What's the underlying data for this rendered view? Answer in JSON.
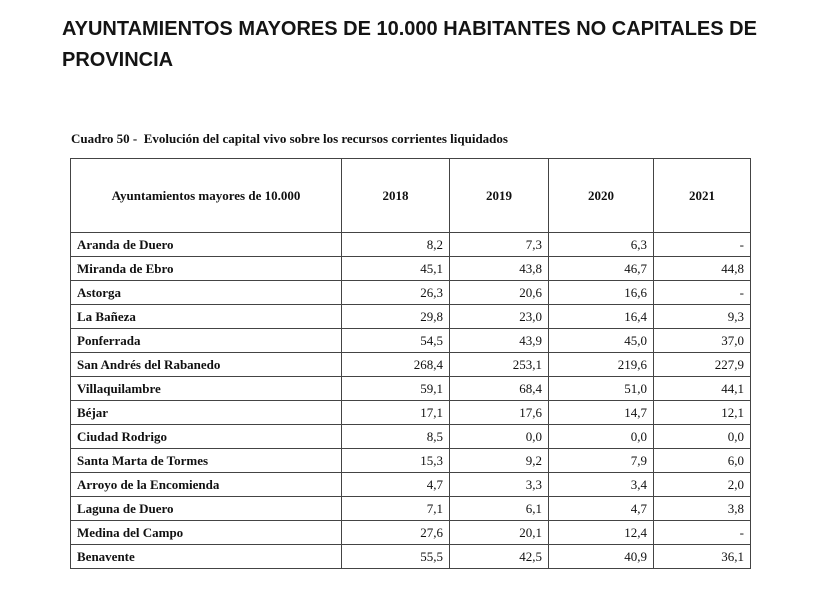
{
  "heading": {
    "line1": "AYUNTAMIENTOS MAYORES DE 10.000 HABITANTES NO CAPITALES DE",
    "line2": "PROVINCIA"
  },
  "caption": "Cuadro 50 -  Evolución del capital vivo sobre los recursos corrientes liquidados",
  "table": {
    "headers": [
      "Ayuntamientos mayores de 10.000",
      "2018",
      "2019",
      "2020",
      "2021"
    ],
    "rows": [
      [
        "Aranda de Duero",
        "8,2",
        "7,3",
        "6,3",
        "-"
      ],
      [
        "Miranda de Ebro",
        "45,1",
        "43,8",
        "46,7",
        "44,8"
      ],
      [
        "Astorga",
        "26,3",
        "20,6",
        "16,6",
        "-"
      ],
      [
        "La Bañeza",
        "29,8",
        "23,0",
        "16,4",
        "9,3"
      ],
      [
        "Ponferrada",
        "54,5",
        "43,9",
        "45,0",
        "37,0"
      ],
      [
        "San Andrés del Rabanedo",
        "268,4",
        "253,1",
        "219,6",
        "227,9"
      ],
      [
        "Villaquilambre",
        "59,1",
        "68,4",
        "51,0",
        "44,1"
      ],
      [
        "Béjar",
        "17,1",
        "17,6",
        "14,7",
        "12,1"
      ],
      [
        "Ciudad Rodrigo",
        "8,5",
        "0,0",
        "0,0",
        "0,0"
      ],
      [
        "Santa Marta de Tormes",
        "15,3",
        "9,2",
        "7,9",
        "6,0"
      ],
      [
        "Arroyo de la Encomienda",
        "4,7",
        "3,3",
        "3,4",
        "2,0"
      ],
      [
        "Laguna de Duero",
        "7,1",
        "6,1",
        "4,7",
        "3,8"
      ],
      [
        "Medina del Campo",
        "27,6",
        "20,1",
        "12,4",
        "-"
      ],
      [
        "Benavente",
        "55,5",
        "42,5",
        "40,9",
        "36,1"
      ]
    ]
  }
}
